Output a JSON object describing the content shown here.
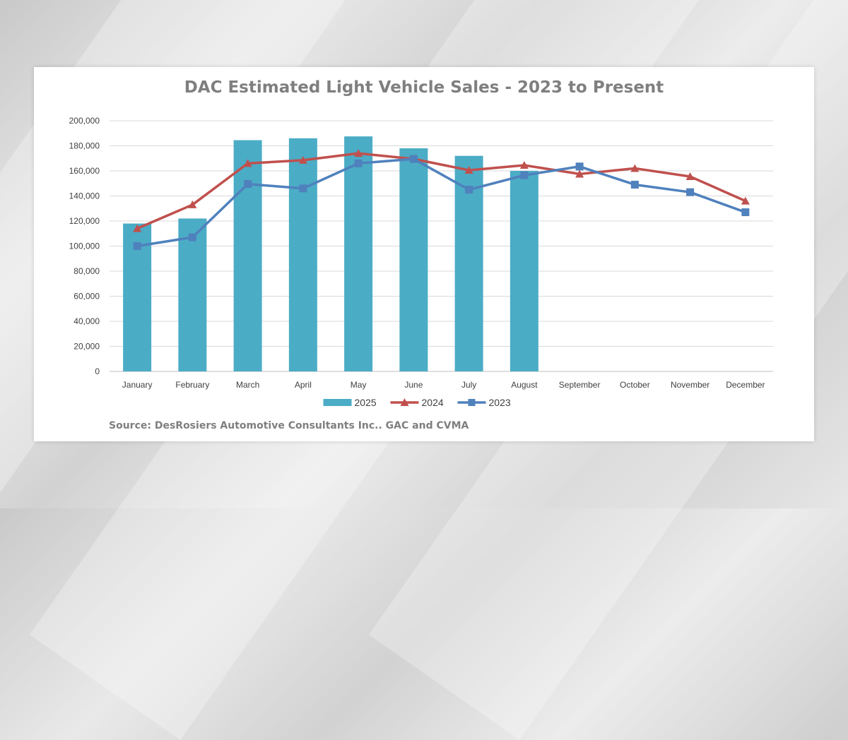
{
  "chart_data": {
    "type": "bar",
    "title": "DAC Estimated Light Vehicle Sales - 2023 to Present",
    "source": "Source:  DesRosiers Automotive Consultants Inc.. GAC and CVMA",
    "categories": [
      "January",
      "February",
      "March",
      "April",
      "May",
      "June",
      "July",
      "August",
      "September",
      "October",
      "November",
      "December"
    ],
    "ylim": [
      0,
      200000
    ],
    "yticks": [
      0,
      20000,
      40000,
      60000,
      80000,
      100000,
      120000,
      140000,
      160000,
      180000,
      200000
    ],
    "ytick_labels": [
      "0",
      "20,000",
      "40,000",
      "60,000",
      "80,000",
      "100,000",
      "120,000",
      "140,000",
      "160,000",
      "180,000",
      "200,000"
    ],
    "grid": true,
    "legend_position": "bottom",
    "series": [
      {
        "name": "2025",
        "kind": "bar",
        "color": "#4bacc6",
        "values": [
          118000,
          122000,
          184500,
          186000,
          187500,
          178000,
          172000,
          160000,
          null,
          null,
          null,
          null
        ]
      },
      {
        "name": "2024",
        "kind": "line",
        "marker": "triangle",
        "color": "#c0504d",
        "values": [
          114000,
          133000,
          166000,
          168500,
          174000,
          169500,
          160500,
          164500,
          157500,
          162000,
          155500,
          136000
        ]
      },
      {
        "name": "2023",
        "kind": "line",
        "marker": "square",
        "color": "#4f81bd",
        "values": [
          100000,
          107000,
          149500,
          146000,
          166000,
          169500,
          145000,
          156500,
          163500,
          149000,
          143000,
          127000
        ]
      }
    ]
  }
}
